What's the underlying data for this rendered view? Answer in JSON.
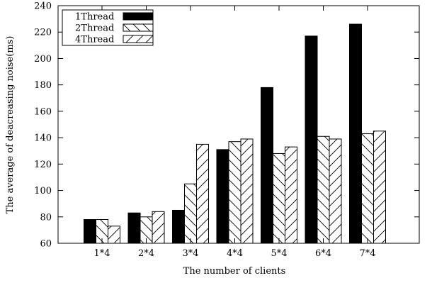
{
  "chart_data": {
    "type": "bar",
    "title": "",
    "xlabel": "The number of clients",
    "ylabel": "The average of deacreasing noise(ms)",
    "categories": [
      "1*4",
      "2*4",
      "3*4",
      "4*4",
      "5*4",
      "6*4",
      "7*4"
    ],
    "ylim": [
      60,
      240
    ],
    "yticks": [
      60,
      80,
      100,
      120,
      140,
      160,
      180,
      200,
      220,
      240
    ],
    "grid": false,
    "legend_position": "top-left",
    "series": [
      {
        "name": "1Thread",
        "pattern": "solid",
        "color": "#000000",
        "values": [
          78,
          83,
          85,
          131,
          178,
          217,
          226
        ]
      },
      {
        "name": "2Thread",
        "pattern": "backslash-hatch",
        "color": "#000000",
        "values": [
          78,
          80,
          105,
          137,
          128,
          141,
          143
        ]
      },
      {
        "name": "4Thread",
        "pattern": "slash-hatch",
        "color": "#000000",
        "values": [
          73,
          84,
          135,
          139,
          133,
          139,
          145
        ]
      }
    ]
  }
}
